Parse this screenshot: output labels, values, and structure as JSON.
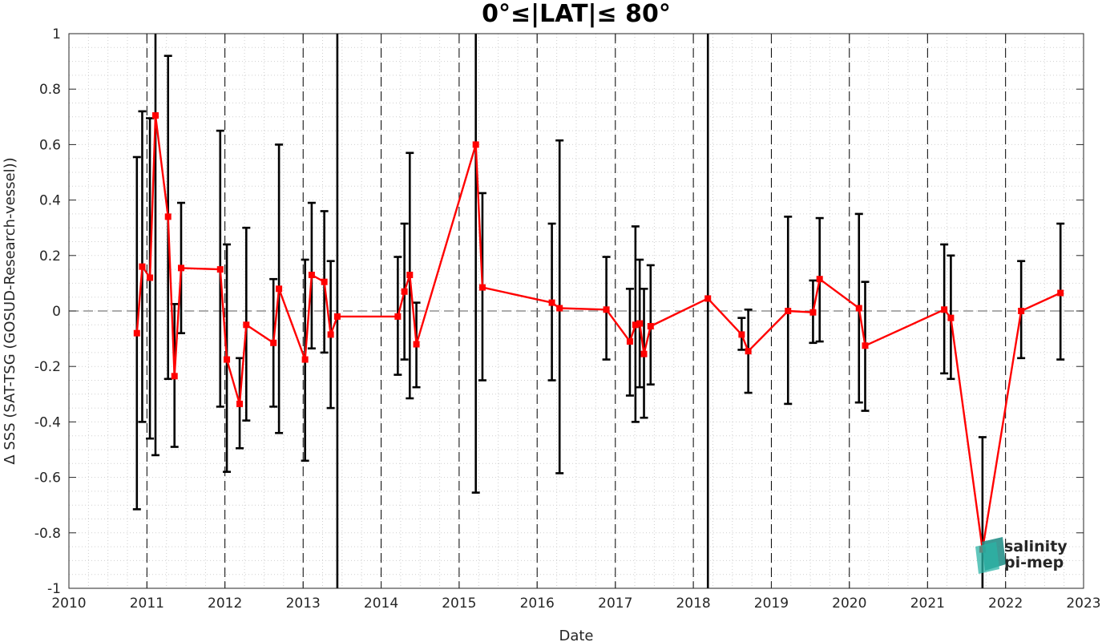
{
  "chart_data": {
    "type": "line",
    "title": "0°≤|LAT|≤ 80°",
    "xlabel": "Date",
    "ylabel": "Δ SSS (SAT-TSG (GOSUD-Research-vessel))",
    "xlim": [
      "2010-01-01",
      "2023-01-01"
    ],
    "ylim": [
      -1,
      1
    ],
    "grid": "minor dotted",
    "xticks": [
      "2010",
      "2011",
      "2012",
      "2013",
      "2014",
      "2015",
      "2016",
      "2017",
      "2018",
      "2019",
      "2020",
      "2021",
      "2022",
      "2023"
    ],
    "yticks": [
      "-1",
      "-0.8",
      "-0.6",
      "-0.4",
      "-0.2",
      "0",
      "0.2",
      "0.4",
      "0.6",
      "0.8",
      "1"
    ],
    "year_boundaries": [
      "2011-01-01",
      "2012-01-01",
      "2013-01-01",
      "2014-01-01",
      "2015-01-01",
      "2016-01-01",
      "2017-01-01",
      "2018-01-01",
      "2019-01-01",
      "2020-01-01",
      "2021-01-01",
      "2022-01-01"
    ],
    "zero_line": 0,
    "series": [
      {
        "color": "#ff0000",
        "marker": "square",
        "points": [
          {
            "x": "2010-11-15",
            "y": -0.08,
            "lo": -0.715,
            "hi": 0.555
          },
          {
            "x": "2010-12-10",
            "y": 0.16,
            "lo": -0.4,
            "hi": 0.72
          },
          {
            "x": "2011-01-15",
            "y": 0.12,
            "lo": -0.46,
            "hi": 0.695
          },
          {
            "x": "2011-02-10",
            "y": 0.705,
            "lo": -0.52,
            "hi": 1.1
          },
          {
            "x": "2011-04-10",
            "y": 0.34,
            "lo": -0.245,
            "hi": 0.92
          },
          {
            "x": "2011-05-10",
            "y": -0.235,
            "lo": -0.49,
            "hi": 0.025
          },
          {
            "x": "2011-06-10",
            "y": 0.155,
            "lo": -0.08,
            "hi": 0.39
          },
          {
            "x": "2011-12-10",
            "y": 0.15,
            "lo": -0.345,
            "hi": 0.65
          },
          {
            "x": "2012-01-10",
            "y": -0.175,
            "lo": -0.58,
            "hi": 0.24
          },
          {
            "x": "2012-03-10",
            "y": -0.335,
            "lo": -0.495,
            "hi": -0.17
          },
          {
            "x": "2012-04-10",
            "y": -0.05,
            "lo": -0.395,
            "hi": 0.3
          },
          {
            "x": "2012-08-15",
            "y": -0.115,
            "lo": -0.345,
            "hi": 0.115
          },
          {
            "x": "2012-09-10",
            "y": 0.08,
            "lo": -0.44,
            "hi": 0.6
          },
          {
            "x": "2013-01-10",
            "y": -0.175,
            "lo": -0.54,
            "hi": 0.185
          },
          {
            "x": "2013-02-10",
            "y": 0.13,
            "lo": -0.135,
            "hi": 0.39
          },
          {
            "x": "2013-04-10",
            "y": 0.105,
            "lo": -0.15,
            "hi": 0.36
          },
          {
            "x": "2013-05-10",
            "y": -0.085,
            "lo": -0.35,
            "hi": 0.18
          },
          {
            "x": "2013-06-10",
            "y": -0.02,
            "lo": -1.1,
            "hi": 1.1
          },
          {
            "x": "2014-03-20",
            "y": -0.02,
            "lo": -0.23,
            "hi": 0.195
          },
          {
            "x": "2014-04-20",
            "y": 0.07,
            "lo": -0.175,
            "hi": 0.315
          },
          {
            "x": "2014-05-15",
            "y": 0.13,
            "lo": -0.315,
            "hi": 0.57
          },
          {
            "x": "2014-06-15",
            "y": -0.12,
            "lo": -0.275,
            "hi": 0.03
          },
          {
            "x": "2015-03-20",
            "y": 0.6,
            "lo": -0.655,
            "hi": 1.1
          },
          {
            "x": "2015-04-20",
            "y": 0.085,
            "lo": -0.25,
            "hi": 0.425
          },
          {
            "x": "2016-03-10",
            "y": 0.03,
            "lo": -0.25,
            "hi": 0.315
          },
          {
            "x": "2016-04-15",
            "y": 0.01,
            "lo": -0.585,
            "hi": 0.615
          },
          {
            "x": "2016-11-20",
            "y": 0.005,
            "lo": -0.175,
            "hi": 0.195
          },
          {
            "x": "2017-03-10",
            "y": -0.11,
            "lo": -0.305,
            "hi": 0.08
          },
          {
            "x": "2017-04-05",
            "y": -0.05,
            "lo": -0.4,
            "hi": 0.305
          },
          {
            "x": "2017-04-25",
            "y": -0.045,
            "lo": -0.275,
            "hi": 0.185
          },
          {
            "x": "2017-05-15",
            "y": -0.155,
            "lo": -0.385,
            "hi": 0.08
          },
          {
            "x": "2017-06-15",
            "y": -0.055,
            "lo": -0.265,
            "hi": 0.165
          },
          {
            "x": "2018-03-10",
            "y": 0.045,
            "lo": -1.1,
            "hi": 1.1
          },
          {
            "x": "2018-08-15",
            "y": -0.085,
            "lo": -0.14,
            "hi": -0.025
          },
          {
            "x": "2018-09-15",
            "y": -0.145,
            "lo": -0.295,
            "hi": 0.005
          },
          {
            "x": "2019-03-20",
            "y": 0.0,
            "lo": -0.335,
            "hi": 0.34
          },
          {
            "x": "2019-07-15",
            "y": -0.005,
            "lo": -0.115,
            "hi": 0.11
          },
          {
            "x": "2019-08-15",
            "y": 0.115,
            "lo": -0.11,
            "hi": 0.335
          },
          {
            "x": "2020-02-15",
            "y": 0.01,
            "lo": -0.33,
            "hi": 0.35
          },
          {
            "x": "2020-03-15",
            "y": -0.125,
            "lo": -0.36,
            "hi": 0.105
          },
          {
            "x": "2021-03-20",
            "y": 0.005,
            "lo": -0.225,
            "hi": 0.24
          },
          {
            "x": "2021-04-20",
            "y": -0.025,
            "lo": -0.245,
            "hi": 0.2
          },
          {
            "x": "2021-09-15",
            "y": -0.86,
            "lo": -1.1,
            "hi": -0.455
          },
          {
            "x": "2022-03-15",
            "y": 0.0,
            "lo": -0.17,
            "hi": 0.18
          },
          {
            "x": "2022-09-15",
            "y": 0.065,
            "lo": -0.175,
            "hi": 0.315
          }
        ]
      }
    ]
  },
  "logo": {
    "line1": "salinity",
    "line2": "pi-mep",
    "color1": "#1fa39a",
    "color2": "#1b6f6a"
  }
}
